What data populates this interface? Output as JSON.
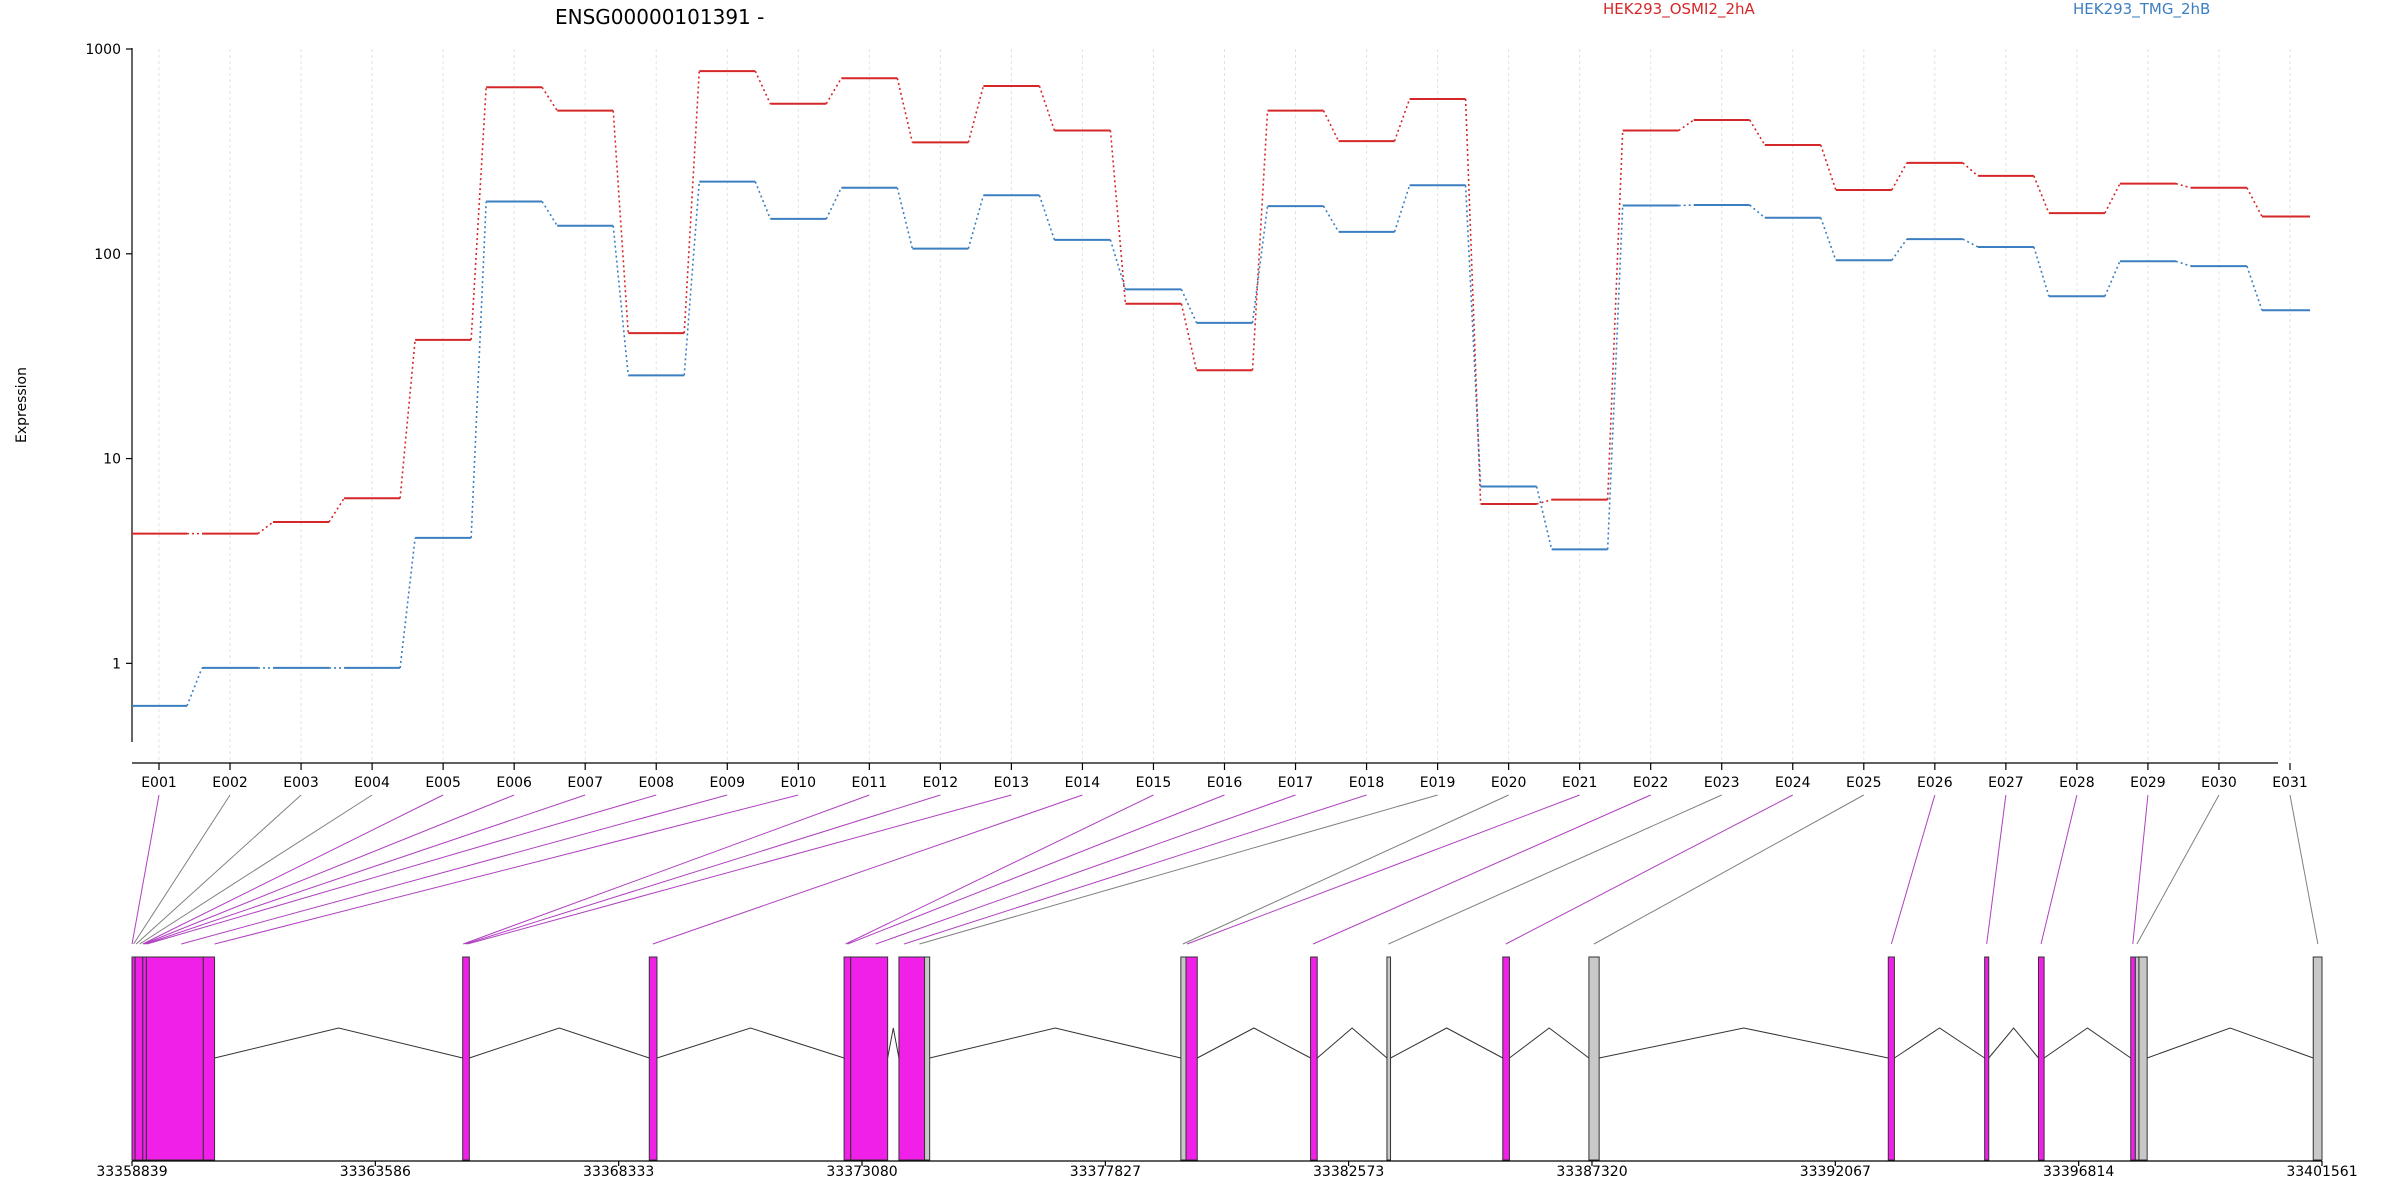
{
  "chart_data": {
    "type": "line",
    "title": "ENSG00000101391 -",
    "ylabel": "Expression",
    "xlabel": "",
    "y_scale": "log",
    "ylim": [
      0.5,
      1000
    ],
    "y_ticks": [
      {
        "value": 1,
        "label": "1"
      },
      {
        "value": 10,
        "label": "10"
      },
      {
        "value": 100,
        "label": "100"
      },
      {
        "value": 1000,
        "label": "1000"
      }
    ],
    "grid": "vertical dashed",
    "legend_placement": "top",
    "categories": [
      "E001",
      "E002",
      "E003",
      "E004",
      "E005",
      "E006",
      "E007",
      "E008",
      "E009",
      "E010",
      "E011",
      "E012",
      "E013",
      "E014",
      "E015",
      "E016",
      "E017",
      "E018",
      "E019",
      "E020",
      "E021",
      "E022",
      "E023",
      "E024",
      "E025",
      "E026",
      "E027",
      "E028",
      "E029",
      "E030",
      "E031"
    ],
    "series": [
      {
        "name": "HEK293_OSMI2_2hA",
        "color": "#d62728",
        "values": [
          4.3,
          4.3,
          4.9,
          6.4,
          38,
          650,
          500,
          41,
          780,
          540,
          720,
          350,
          660,
          400,
          57,
          27,
          500,
          355,
          570,
          6.0,
          6.3,
          400,
          450,
          340,
          205,
          278,
          240,
          158,
          220,
          210,
          152
        ]
      },
      {
        "name": "HEK293_TMG_2hB",
        "color": "#3c7fc0",
        "values": [
          0.62,
          0.95,
          0.95,
          0.95,
          4.1,
          180,
          137,
          25.5,
          225,
          148,
          210,
          106,
          193,
          117,
          67,
          46,
          171,
          128,
          216,
          7.3,
          3.6,
          172,
          173,
          150,
          93,
          118,
          108,
          62,
          92,
          87,
          53
        ]
      }
    ],
    "gene_model": {
      "coordinate_labels": [
        "33358839",
        "33363586",
        "33368333",
        "33373080",
        "33377827",
        "33382573",
        "33387320",
        "33392067",
        "33396814",
        "33401561"
      ],
      "coordinate_values": [
        33358839,
        33363586,
        33368333,
        33373080,
        33377827,
        33382573,
        33387320,
        33392067,
        33396814,
        33401561
      ],
      "exons": [
        {
          "start": 33358839,
          "end": 33358900,
          "type": "coding"
        },
        {
          "start": 33358900,
          "end": 33359050,
          "type": "coding"
        },
        {
          "start": 33359050,
          "end": 33359120,
          "type": "coding"
        },
        {
          "start": 33359120,
          "end": 33360230,
          "type": "coding"
        },
        {
          "start": 33360230,
          "end": 33360450,
          "type": "coding"
        },
        {
          "start": 33365290,
          "end": 33365420,
          "type": "coding"
        },
        {
          "start": 33368930,
          "end": 33369080,
          "type": "coding"
        },
        {
          "start": 33372730,
          "end": 33372860,
          "type": "coding"
        },
        {
          "start": 33372860,
          "end": 33373580,
          "type": "coding"
        },
        {
          "start": 33373800,
          "end": 33374300,
          "type": "coding"
        },
        {
          "start": 33374300,
          "end": 33374400,
          "type": "noncoding"
        },
        {
          "start": 33379300,
          "end": 33379400,
          "type": "noncoding"
        },
        {
          "start": 33379400,
          "end": 33379620,
          "type": "coding"
        },
        {
          "start": 33381830,
          "end": 33381960,
          "type": "coding"
        },
        {
          "start": 33383320,
          "end": 33383390,
          "type": "noncoding"
        },
        {
          "start": 33385580,
          "end": 33385710,
          "type": "coding"
        },
        {
          "start": 33387260,
          "end": 33387460,
          "type": "noncoding"
        },
        {
          "start": 33393100,
          "end": 33393220,
          "type": "coding"
        },
        {
          "start": 33394980,
          "end": 33395060,
          "type": "coding"
        },
        {
          "start": 33396030,
          "end": 33396140,
          "type": "coding"
        },
        {
          "start": 33397830,
          "end": 33397920,
          "type": "coding"
        },
        {
          "start": 33397920,
          "end": 33397990,
          "type": "noncoding"
        },
        {
          "start": 33397990,
          "end": 33398150,
          "type": "noncoding"
        },
        {
          "start": 33401390,
          "end": 33401561,
          "type": "noncoding"
        }
      ],
      "bin_map": [
        {
          "bin": "E001",
          "pos": 33358840,
          "type": "coding"
        },
        {
          "bin": "E002",
          "pos": 33358870,
          "type": "noncoding"
        },
        {
          "bin": "E003",
          "pos": 33358920,
          "type": "noncoding"
        },
        {
          "bin": "E004",
          "pos": 33358990,
          "type": "noncoding"
        },
        {
          "bin": "E005",
          "pos": 33359050,
          "type": "coding"
        },
        {
          "bin": "E006",
          "pos": 33359070,
          "type": "coding"
        },
        {
          "bin": "E007",
          "pos": 33359100,
          "type": "coding"
        },
        {
          "bin": "E008",
          "pos": 33359130,
          "type": "coding"
        },
        {
          "bin": "E009",
          "pos": 33359800,
          "type": "coding"
        },
        {
          "bin": "E010",
          "pos": 33360450,
          "type": "coding"
        },
        {
          "bin": "E011",
          "pos": 33365300,
          "type": "coding"
        },
        {
          "bin": "E012",
          "pos": 33365340,
          "type": "coding"
        },
        {
          "bin": "E013",
          "pos": 33365380,
          "type": "coding"
        },
        {
          "bin": "E014",
          "pos": 33369000,
          "type": "coding"
        },
        {
          "bin": "E015",
          "pos": 33372760,
          "type": "coding"
        },
        {
          "bin": "E016",
          "pos": 33372800,
          "type": "coding"
        },
        {
          "bin": "E017",
          "pos": 33373350,
          "type": "coding"
        },
        {
          "bin": "E018",
          "pos": 33373900,
          "type": "coding"
        },
        {
          "bin": "E019",
          "pos": 33374200,
          "type": "noncoding"
        },
        {
          "bin": "E020",
          "pos": 33379340,
          "type": "noncoding"
        },
        {
          "bin": "E021",
          "pos": 33379420,
          "type": "coding"
        },
        {
          "bin": "E022",
          "pos": 33381880,
          "type": "coding"
        },
        {
          "bin": "E023",
          "pos": 33383350,
          "type": "noncoding"
        },
        {
          "bin": "E024",
          "pos": 33385640,
          "type": "coding"
        },
        {
          "bin": "E025",
          "pos": 33387360,
          "type": "noncoding"
        },
        {
          "bin": "E026",
          "pos": 33393160,
          "type": "coding"
        },
        {
          "bin": "E027",
          "pos": 33395020,
          "type": "coding"
        },
        {
          "bin": "E028",
          "pos": 33396080,
          "type": "coding"
        },
        {
          "bin": "E029",
          "pos": 33397870,
          "type": "coding"
        },
        {
          "bin": "E030",
          "pos": 33397950,
          "type": "noncoding"
        },
        {
          "bin": "E031",
          "pos": 33401480,
          "type": "noncoding"
        }
      ]
    },
    "colors": {
      "coding": "#f020e8",
      "noncoding": "#c8c8c8",
      "connector_coding": "#b040c0",
      "connector_noncoding": "#808080"
    }
  }
}
